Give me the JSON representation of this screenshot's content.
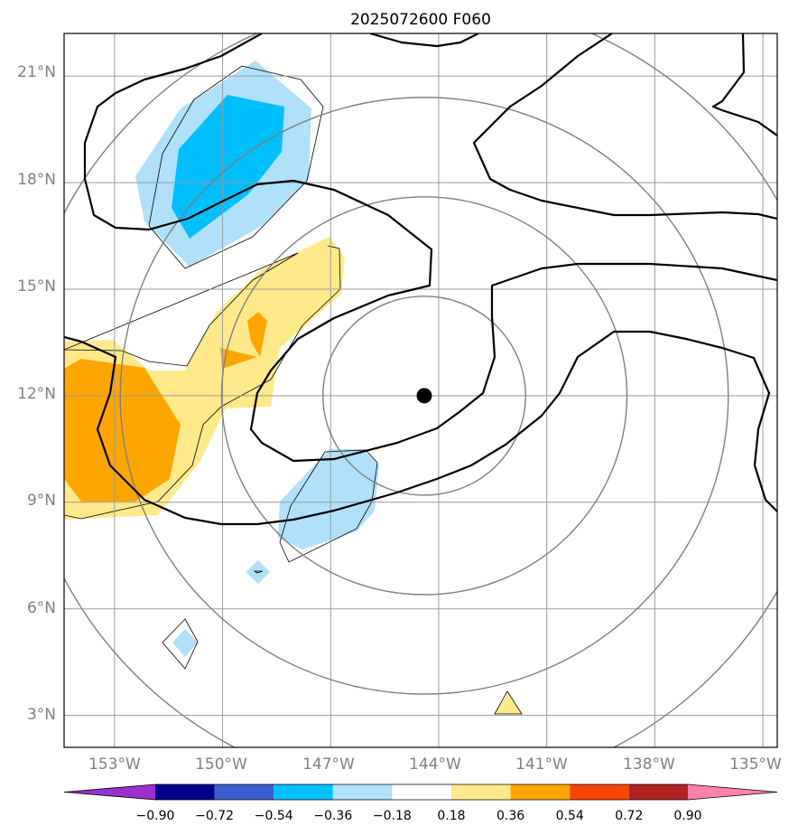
{
  "title": "2025072600 F060",
  "map": {
    "lon_range": [
      -154.4,
      -134.6
    ],
    "lat_range": [
      2.1,
      22.2
    ],
    "center_marker": {
      "lon": -144.4,
      "lat": 12.0
    },
    "gridlines": true,
    "lon_ticks": [
      {
        "value": -153,
        "label": "153°W"
      },
      {
        "value": -150,
        "label": "150°W"
      },
      {
        "value": -147,
        "label": "147°W"
      },
      {
        "value": -144,
        "label": "144°W"
      },
      {
        "value": -141,
        "label": "141°W"
      },
      {
        "value": -138,
        "label": "138°W"
      },
      {
        "value": -135,
        "label": "135°W"
      }
    ],
    "lat_ticks": [
      {
        "value": 21,
        "label": "21°N"
      },
      {
        "value": 18,
        "label": "18°N"
      },
      {
        "value": 15,
        "label": "15°N"
      },
      {
        "value": 12,
        "label": "12°N"
      },
      {
        "value": 9,
        "label": "9°N"
      },
      {
        "value": 6,
        "label": "6°N"
      },
      {
        "value": 3,
        "label": "3°N"
      }
    ],
    "range_rings_deg": [
      2.8,
      5.6,
      8.4,
      11.2
    ]
  },
  "colorbar": {
    "colors": [
      "#9932cc",
      "#00008b",
      "#3a5fcd",
      "#00bfff",
      "#b0e0fa",
      "#ffffff",
      "#ffe98a",
      "#ffa500",
      "#ff4500",
      "#b22222",
      "#ff82ab"
    ],
    "tick_labels": [
      "−0.90",
      "−0.72",
      "−0.54",
      "−0.36",
      "−0.18",
      "0.18",
      "0.36",
      "0.54",
      "0.72",
      "0.90"
    ]
  },
  "fill_colors": {
    "light_blue": "#b0e0fa",
    "blue": "#00bfff",
    "light_yellow": "#ffe98a",
    "orange": "#ffa500"
  }
}
